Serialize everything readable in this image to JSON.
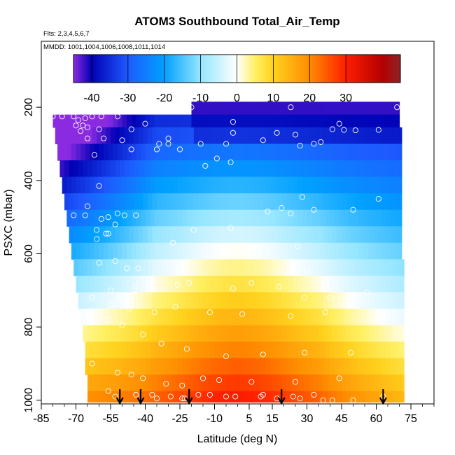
{
  "chart_data": {
    "type": "heatmap",
    "title": "ATOM3 Southbound Total_Air_Temp",
    "flights_label": "Flts: 2,3,4,5,6,7",
    "dates_label": "MMDD: 1001,1004,1006,1008,1011,1014",
    "xlabel": "Latitude (deg N)",
    "ylabel": "PSXC (mbar)",
    "xlim": [
      -85,
      85
    ],
    "ylim": [
      1010,
      20
    ],
    "x_ticks": [
      -85,
      -70,
      -55,
      -40,
      -25,
      -10,
      5,
      15,
      30,
      45,
      60,
      75
    ],
    "x_tick_labels": [
      "-85",
      "-70",
      "-55",
      "-40",
      "-25",
      "-10",
      "5",
      "15",
      "30",
      "45",
      "60",
      "75"
    ],
    "x_minor_step": 5,
    "y_ticks": [
      200,
      400,
      600,
      800,
      1000
    ],
    "y_tick_labels": [
      "200",
      "400",
      "600",
      "800",
      "1000"
    ],
    "colorbar": {
      "range": [
        -45,
        45
      ],
      "ticks": [
        -40,
        -30,
        -20,
        -10,
        0,
        10,
        20,
        30
      ],
      "tick_labels": [
        "-40",
        "-30",
        "-20",
        "-10",
        "0",
        "10",
        "20",
        "30"
      ],
      "colors": [
        {
          "v": -45,
          "c": "#8a2be2"
        },
        {
          "v": -40,
          "c": "#0000b4"
        },
        {
          "v": -30,
          "c": "#1e5aff"
        },
        {
          "v": -20,
          "c": "#00a0ff"
        },
        {
          "v": -10,
          "c": "#96e6ff"
        },
        {
          "v": 0,
          "c": "#ffffff"
        },
        {
          "v": 5,
          "c": "#fff064"
        },
        {
          "v": 10,
          "c": "#ffd21e"
        },
        {
          "v": 20,
          "c": "#ff8c00"
        },
        {
          "v": 30,
          "c": "#ff1e00"
        },
        {
          "v": 40,
          "c": "#b40000"
        },
        {
          "v": 45,
          "c": "#8c2323"
        }
      ]
    },
    "profile_arrows_lat": [
      -51,
      -42,
      -21,
      19,
      63
    ],
    "field": {
      "lat_min": -80,
      "lat_max": 72,
      "lat_step": 2,
      "pressure_bands": [
        {
          "p_top": 185,
          "p_bot": 220,
          "lat_start": -20,
          "lat_end": 70
        },
        {
          "p_top": 220,
          "p_bot": 255,
          "lat_start": -80,
          "lat_end": 70
        },
        {
          "p_top": 255,
          "p_bot": 300,
          "lat_start": -79,
          "lat_end": 71
        },
        {
          "p_top": 300,
          "p_bot": 345,
          "lat_start": -78,
          "lat_end": 71
        },
        {
          "p_top": 345,
          "p_bot": 390,
          "lat_start": -77,
          "lat_end": 71
        },
        {
          "p_top": 390,
          "p_bot": 435,
          "lat_start": -76,
          "lat_end": 71
        },
        {
          "p_top": 435,
          "p_bot": 480,
          "lat_start": -75,
          "lat_end": 71
        },
        {
          "p_top": 480,
          "p_bot": 525,
          "lat_start": -74,
          "lat_end": 71
        },
        {
          "p_top": 525,
          "p_bot": 570,
          "lat_start": -73,
          "lat_end": 71
        },
        {
          "p_top": 570,
          "p_bot": 615,
          "lat_start": -72,
          "lat_end": 71
        },
        {
          "p_top": 615,
          "p_bot": 660,
          "lat_start": -71,
          "lat_end": 72
        },
        {
          "p_top": 660,
          "p_bot": 705,
          "lat_start": -70,
          "lat_end": 72
        },
        {
          "p_top": 705,
          "p_bot": 750,
          "lat_start": -69,
          "lat_end": 72
        },
        {
          "p_top": 750,
          "p_bot": 795,
          "lat_start": -68,
          "lat_end": 72
        },
        {
          "p_top": 795,
          "p_bot": 840,
          "lat_start": -67,
          "lat_end": 72
        },
        {
          "p_top": 840,
          "p_bot": 885,
          "lat_start": -66,
          "lat_end": 72
        },
        {
          "p_top": 885,
          "p_bot": 930,
          "lat_start": -66,
          "lat_end": 72
        },
        {
          "p_top": 930,
          "p_bot": 975,
          "lat_start": -65,
          "lat_end": 72
        },
        {
          "p_top": 975,
          "p_bot": 1005,
          "lat_start": -65,
          "lat_end": 72
        }
      ]
    },
    "obs_points": [
      [
        -80,
        225
      ],
      [
        -76,
        225
      ],
      [
        -71,
        225
      ],
      [
        -69,
        235
      ],
      [
        -66,
        230
      ],
      [
        -63,
        225
      ],
      [
        -59,
        225
      ],
      [
        -52,
        225
      ],
      [
        -40,
        245
      ],
      [
        -20,
        200
      ],
      [
        -2,
        240
      ],
      [
        23,
        200
      ],
      [
        44,
        245
      ],
      [
        69,
        200
      ],
      [
        -70,
        250
      ],
      [
        -67,
        250
      ],
      [
        -65,
        255
      ],
      [
        -60,
        260
      ],
      [
        -46,
        260
      ],
      [
        -30,
        285
      ],
      [
        -2,
        270
      ],
      [
        17,
        270
      ],
      [
        25,
        275
      ],
      [
        41,
        260
      ],
      [
        46,
        262
      ],
      [
        51,
        263
      ],
      [
        61,
        262
      ],
      [
        -68,
        265
      ],
      [
        -65,
        285
      ],
      [
        -58,
        285
      ],
      [
        -50,
        290
      ],
      [
        -34,
        300
      ],
      [
        -30,
        300
      ],
      [
        -16,
        300
      ],
      [
        -5,
        300
      ],
      [
        11,
        290
      ],
      [
        27,
        305
      ],
      [
        33,
        300
      ],
      [
        36,
        295
      ],
      [
        -62,
        330
      ],
      [
        -46,
        315
      ],
      [
        -35,
        315
      ],
      [
        -25,
        315
      ],
      [
        -9,
        340
      ],
      [
        -3,
        350
      ],
      [
        -14,
        360
      ],
      [
        -60,
        415
      ],
      [
        -71,
        495
      ],
      [
        -66,
        495
      ],
      [
        -56,
        500
      ],
      [
        -52,
        490
      ],
      [
        -49,
        495
      ],
      [
        -44,
        495
      ],
      [
        13,
        485
      ],
      [
        19,
        475
      ],
      [
        23,
        490
      ],
      [
        28,
        445
      ],
      [
        33,
        480
      ],
      [
        50,
        480
      ],
      [
        61,
        450
      ],
      [
        -65,
        470
      ],
      [
        -59,
        505
      ],
      [
        -53,
        520
      ],
      [
        -61,
        535
      ],
      [
        -57,
        545
      ],
      [
        -19,
        535
      ],
      [
        -3,
        530
      ],
      [
        -28,
        570
      ],
      [
        -61,
        560
      ],
      [
        -56,
        545
      ],
      [
        26,
        580
      ],
      [
        30,
        645
      ],
      [
        -60,
        625
      ],
      [
        -53,
        620
      ],
      [
        -48,
        640
      ],
      [
        -43,
        640
      ],
      [
        -44,
        690
      ],
      [
        -55,
        700
      ],
      [
        -51,
        715
      ],
      [
        -45,
        710
      ],
      [
        -26,
        685
      ],
      [
        -21,
        680
      ],
      [
        -2,
        695
      ],
      [
        6,
        680
      ],
      [
        18,
        690
      ],
      [
        29,
        720
      ],
      [
        40,
        720
      ],
      [
        56,
        705
      ],
      [
        -63,
        720
      ],
      [
        -55,
        740
      ],
      [
        -47,
        750
      ],
      [
        -36,
        760
      ],
      [
        -27,
        745
      ],
      [
        -12,
        760
      ],
      [
        2,
        765
      ],
      [
        23,
        770
      ],
      [
        38,
        760
      ],
      [
        -56,
        780
      ],
      [
        -50,
        795
      ],
      [
        -41,
        820
      ],
      [
        -33,
        845
      ],
      [
        -22,
        860
      ],
      [
        -5,
        880
      ],
      [
        11,
        875
      ],
      [
        29,
        870
      ],
      [
        49,
        870
      ],
      [
        -63,
        900
      ],
      [
        -52,
        925
      ],
      [
        -46,
        930
      ],
      [
        -41,
        940
      ],
      [
        -31,
        955
      ],
      [
        -24,
        960
      ],
      [
        -15,
        940
      ],
      [
        -8,
        945
      ],
      [
        6,
        950
      ],
      [
        25,
        950
      ],
      [
        44,
        940
      ],
      [
        -56,
        975
      ],
      [
        -53,
        990
      ],
      [
        -44,
        985
      ],
      [
        -35,
        995
      ],
      [
        -24,
        995
      ],
      [
        -17,
        985
      ],
      [
        -1,
        990
      ],
      [
        10,
        990
      ],
      [
        17,
        995
      ],
      [
        27,
        995
      ],
      [
        37,
        1000
      ],
      [
        50,
        1000
      ],
      [
        -37,
        985
      ],
      [
        -29,
        990
      ],
      [
        -23,
        995
      ],
      [
        -12,
        985
      ],
      [
        -5,
        990
      ],
      [
        11,
        985
      ],
      [
        24,
        990
      ],
      [
        33,
        985
      ],
      [
        41,
        1000
      ],
      [
        63,
        990
      ]
    ]
  }
}
